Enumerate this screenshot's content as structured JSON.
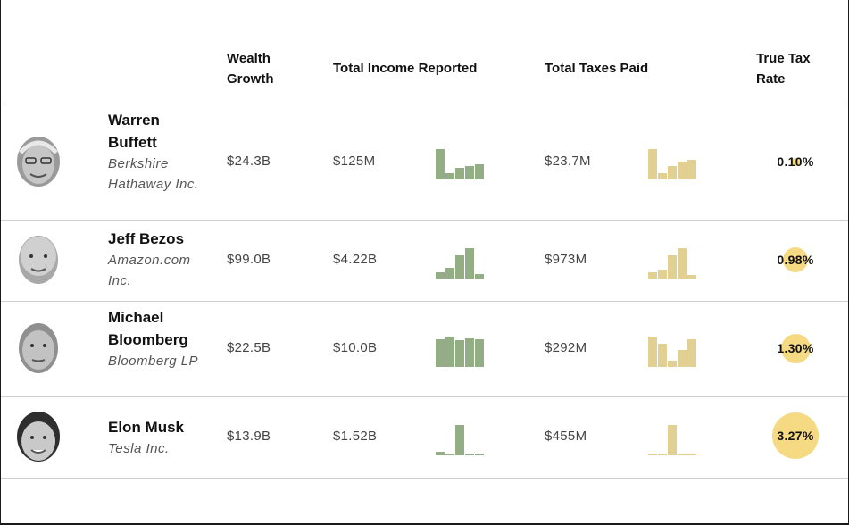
{
  "headers": {
    "wealth_growth": "Wealth Growth",
    "total_income": "Total Income Reported",
    "total_taxes": "Total Taxes Paid",
    "true_tax_rate": "True Tax Rate"
  },
  "rows": [
    {
      "name": "Warren Buffett",
      "company": "Berkshire Hathaway Inc.",
      "wealth_growth": "$24.3B",
      "income": "$125M",
      "taxes": "$23.7M",
      "rate": "0.10%",
      "rate_value": 0.1,
      "income_bars": [
        1.0,
        0.2,
        0.38,
        0.45,
        0.5
      ],
      "tax_bars": [
        1.0,
        0.2,
        0.45,
        0.6,
        0.65
      ]
    },
    {
      "name": "Jeff Bezos",
      "company": "Amazon.com Inc.",
      "wealth_growth": "$99.0B",
      "income": "$4.22B",
      "taxes": "$973M",
      "rate": "0.98%",
      "rate_value": 0.98,
      "income_bars": [
        0.2,
        0.35,
        0.75,
        1.0,
        0.15
      ],
      "tax_bars": [
        0.2,
        0.3,
        0.75,
        1.0,
        0.12
      ]
    },
    {
      "name": "Michael Bloomberg",
      "company": "Bloomberg LP",
      "wealth_growth": "$22.5B",
      "income": "$10.0B",
      "taxes": "$292M",
      "rate": "1.30%",
      "rate_value": 1.3,
      "income_bars": [
        0.92,
        1.0,
        0.88,
        0.95,
        0.9
      ],
      "tax_bars": [
        1.0,
        0.75,
        0.2,
        0.55,
        0.92
      ]
    },
    {
      "name": "Elon Musk",
      "company": "Tesla Inc.",
      "wealth_growth": "$13.9B",
      "income": "$1.52B",
      "taxes": "$455M",
      "rate": "3.27%",
      "rate_value": 3.27,
      "income_bars": [
        0.12,
        0.05,
        1.0,
        0.05,
        0.05
      ],
      "tax_bars": [
        0.05,
        0.05,
        1.0,
        0.05,
        0.05
      ]
    }
  ],
  "colors": {
    "income_bar": "#93ad84",
    "tax_bar": "#e2cf92",
    "rate_bubble": "#f5d983"
  }
}
